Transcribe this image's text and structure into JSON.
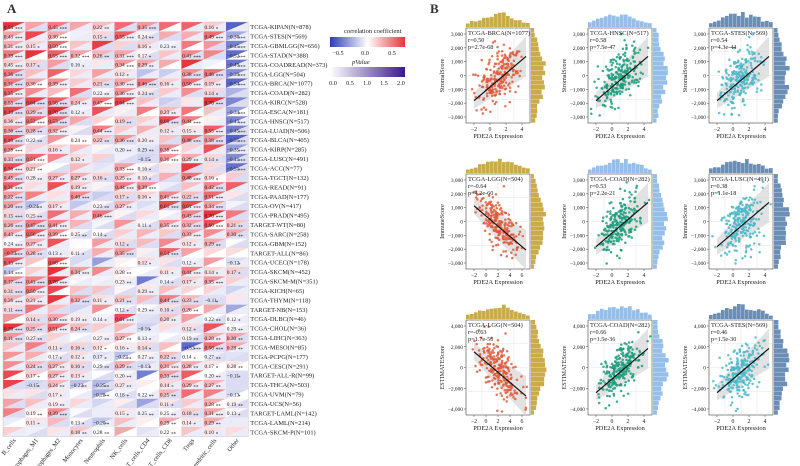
{
  "panels": {
    "a": {
      "label": "A",
      "legend": {
        "title": "correlation coefficient",
        "scale_ticks": [
          "−0.5",
          "0.0",
          "0.5"
        ],
        "pvalue_title": "pValue",
        "pvalue_ticks": [
          "0.0",
          "0.5",
          "1.0",
          "1.5",
          "2.0"
        ]
      },
      "cell_types": [
        "B_cells",
        "Macrophages_M1",
        "Macrophages_M2",
        "Monocytes",
        "Neutrophils",
        "NK_cells",
        "T_cells_CD4",
        "T_cells_CD8",
        "Tregs",
        "Dendritic_cells",
        "Other"
      ],
      "cancer_types": [
        "TCGA-KIPAN(N=878)",
        "TCGA-STES(N=569)",
        "TCGA-GBMLGG(N=656)",
        "TCGA-STAD(N=388)",
        "TCGA-COADREAD(N=373)",
        "TCGA-LGG(N=504)",
        "TCGA-BRCA(N=1077)",
        "TCGA-COAD(N=282)",
        "TCGA-KIRC(N=528)",
        "TCGA-ESCA(N=181)",
        "TCGA-HNSC(N=517)",
        "TCGA-LUAD(N=506)",
        "TCGA-BLCA(N=405)",
        "TCGA-KIRP(N=285)",
        "TCGA-LUSC(N=491)",
        "TCGA-ACC(N=77)",
        "TCGA-TGCT(N=132)",
        "TCGA-READ(N=91)",
        "TCGA-PAAD(N=177)",
        "TCGA-OV(N=417)",
        "TCGA-PRAD(N=495)",
        "TARGET-WT(N=80)",
        "TCGA-SARC(N=258)",
        "TCGA-GBM(N=152)",
        "TARGET-ALL(N=86)",
        "TCGA-UCEC(N=178)",
        "TCGA-SKCM(N=452)",
        "TCGA-SKCM-M(N=351)",
        "TCGA-KICH(N=65)",
        "TCGA-THYM(N=118)",
        "TARGET-NB(N=153)",
        "TCGA-DLBC(N=46)",
        "TCGA-CHOL(N=36)",
        "TCGA-LIHC(N=363)",
        "TCGA-MESO(N=85)",
        "TCGA-PCPG(N=177)",
        "TCGA-CESC(N=291)",
        "TARGET-ALL-R(N=99)",
        "TCGA-THCA(N=503)",
        "TCGA-UVM(N=79)",
        "TCGA-UCS(N=56)",
        "TARGET-LAML(N=142)",
        "TCGA-LAML(N=214)",
        "TCGA-SKCM-P(N=101)"
      ],
      "row_b_cells_r": [
        "0.54",
        "0.43",
        "0.31",
        "0.39",
        "0.45",
        "0.36",
        "0.31",
        "0.35",
        "0.53",
        "0.19",
        "0.36",
        "0.36",
        "0.40",
        "0.28",
        "0.33",
        "0.36",
        "0.45",
        "0.31",
        "0.22",
        "0.20",
        "0.15",
        "0.26",
        "0.43",
        "0.24",
        "−0.33",
        "0.13",
        "0.14",
        "0.17",
        "0.31",
        "0.26",
        "0.11",
        "",
        "0.20",
        "0.11",
        "",
        "",
        "",
        "",
        "",
        "",
        "",
        "",
        "",
        ""
      ]
    },
    "b": {
      "label": "B",
      "x_axis_label": "PDE2A Expression",
      "row_y_labels": [
        "StromalScore",
        "ImmuneScore",
        "ESTIMATEScore"
      ],
      "scatter_plots": [
        {
          "title": "TCGA-BRCA(N=1077)",
          "r": "r=0.50",
          "p": "p=2.7e-68",
          "color": "#e05a3a"
        },
        {
          "title": "TCGA-HNSC(N=517)",
          "r": "r=0.58",
          "p": "p=7.5e-47",
          "color": "#1a9e7e"
        },
        {
          "title": "TCGA-STES(N=569)",
          "r": "r=0.54",
          "p": "p=4.3e-44",
          "color": "#4ab7c8"
        },
        {
          "title": "TCGA-LGG(N=504)",
          "r": "r=-0.64",
          "p": "p=4.2e-60",
          "color": "#e05a3a"
        },
        {
          "title": "TCGA-COAD(N=282)",
          "r": "r=0.53",
          "p": "p=2.2e-21",
          "color": "#1a9e7e"
        },
        {
          "title": "TCGA-LUSC(N=491)",
          "r": "r=0.38",
          "p": "p=1.1e-18",
          "color": "#4ab7c8"
        },
        {
          "title": "TCGA-LGG(N=504)",
          "r": "r=-0.63",
          "p": "p=1.7e-56",
          "color": "#e05a3a"
        },
        {
          "title": "TCGA-COAD(N=282)",
          "r": "r=0.66",
          "p": "p=1.5e-36",
          "color": "#1a9e7e"
        },
        {
          "title": "TCGA-STES(N=569)",
          "r": "r=0.46",
          "p": "p=1.5e-30",
          "color": "#4ab7c8"
        }
      ],
      "x_tick_sets": [
        [
          "−2",
          "0",
          "2",
          "4"
        ],
        [
          "−2",
          "0",
          "2",
          "4"
        ],
        [
          "−2",
          "0",
          "2",
          "4"
        ],
        [
          "−2",
          "0",
          "2",
          "4",
          "6"
        ],
        [
          "−2",
          "0",
          "2",
          "4"
        ],
        [
          "−2",
          "0",
          "2",
          "4"
        ],
        [
          "−2",
          "0",
          "2",
          "4",
          "6"
        ],
        [
          "−2",
          "0",
          "2",
          "4"
        ],
        [
          "−2",
          "0",
          "2",
          "4"
        ]
      ],
      "y_tick_sets": [
        [
          "3,000",
          "2,000",
          "1,000",
          "0",
          "−1,000",
          "−2,000",
          "−3,000"
        ],
        [
          "3,000",
          "2,000",
          "1,000",
          "0",
          "−1,000",
          "−2,000",
          "−3,000"
        ],
        [
          "3,000",
          "2,000",
          "1,000",
          "0",
          "−1,000",
          "−2,000",
          "−3,000"
        ],
        [
          "3,000",
          "2,000",
          "1,000",
          "0",
          "−1,000",
          "−2,000",
          "−3,000"
        ],
        [
          "3,000",
          "2,000",
          "1,000",
          "0",
          "−1,000",
          "−2,000",
          "−3,000"
        ],
        [
          "3,000",
          "2,000",
          "1,000",
          "0",
          "−1,000",
          "−2,000",
          "−3,000"
        ],
        [
          "4,000",
          "2,000",
          "0",
          "−2,000",
          "−4,000"
        ],
        [
          "4,000",
          "2,000",
          "0",
          "−2,000",
          "−4,000"
        ],
        [
          "4,000",
          "2,000",
          "0",
          "−2,000",
          "−4,000"
        ]
      ]
    }
  },
  "colors": {
    "positive": "#e8333a",
    "negative": "#2a3ab8",
    "gold": "#c4a135",
    "teal": "#1a9e7e",
    "cyan": "#4ab7c8"
  }
}
